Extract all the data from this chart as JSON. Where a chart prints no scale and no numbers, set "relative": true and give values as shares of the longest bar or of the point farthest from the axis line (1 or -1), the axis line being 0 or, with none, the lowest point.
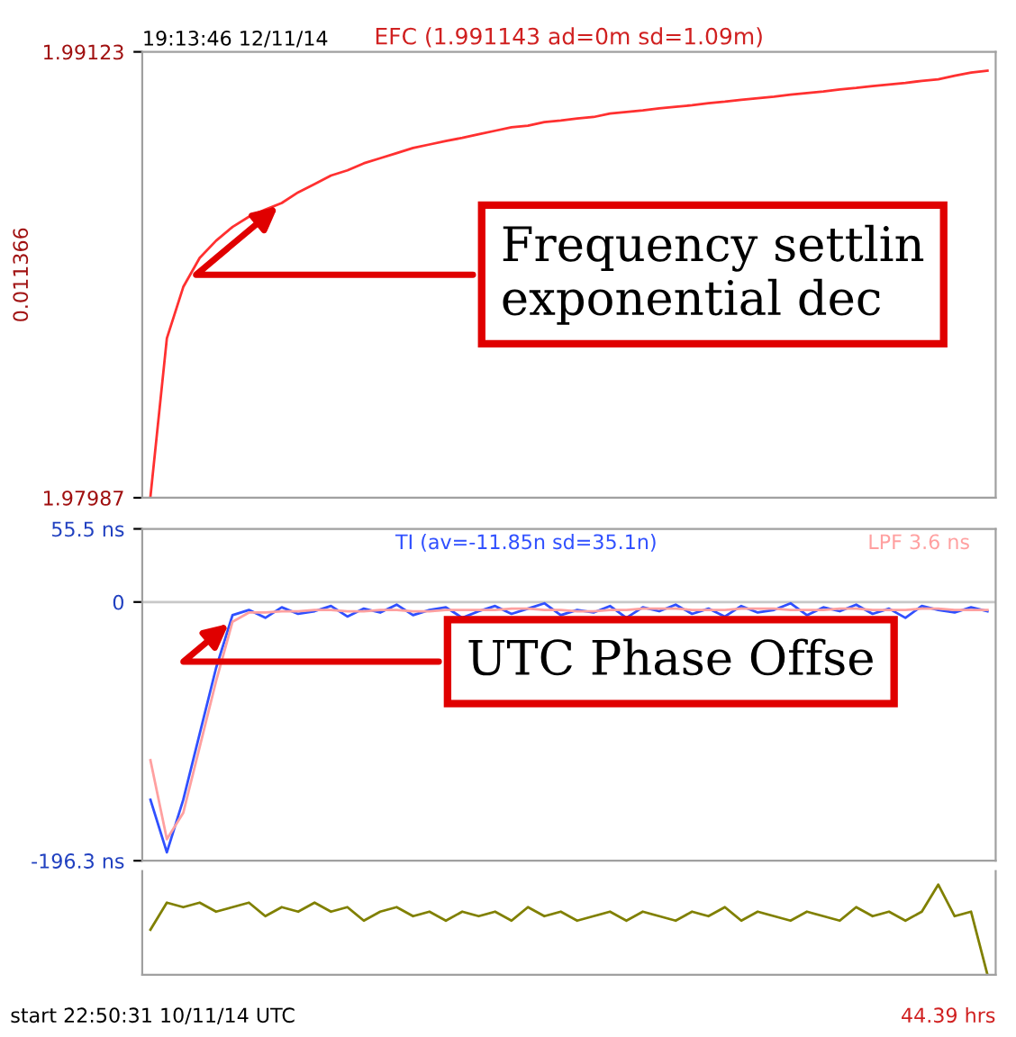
{
  "chart_data": [
    {
      "type": "line",
      "title": "EFC (1.991143 ad=0m sd=1.09m)",
      "ylabel": "0.011366",
      "annotations": [
        "19:13:46 12/11/14",
        "Frequency settlin\nexponential dec"
      ],
      "categories": [
        null,
        null,
        null,
        null,
        null,
        null,
        null,
        null,
        null,
        null,
        null,
        null,
        null,
        null,
        null,
        null,
        null,
        null,
        null,
        null,
        null,
        null,
        null,
        null,
        null,
        null,
        null,
        null,
        null,
        null,
        null,
        null,
        null,
        null,
        null,
        null,
        null,
        null,
        null,
        null,
        null,
        null,
        null,
        null,
        null,
        null,
        null,
        null,
        null,
        null,
        null,
        null
      ],
      "series": [
        {
          "color": "#ff3030",
          "values": [
            1.9799,
            1.98393,
            1.98524,
            1.98598,
            1.98642,
            1.98677,
            1.98703,
            1.98721,
            1.98738,
            1.98765,
            1.98786,
            1.98808,
            1.98821,
            1.98839,
            1.98852,
            1.98865,
            1.98878,
            1.98887,
            1.98896,
            1.98904,
            1.98913,
            1.98922,
            1.98931,
            1.98935,
            1.98944,
            1.98948,
            1.98953,
            1.98957,
            1.98966,
            1.9897,
            1.98974,
            1.98979,
            1.98983,
            1.98987,
            1.98992,
            1.98996,
            1.99001,
            1.99005,
            1.99009,
            1.99014,
            1.99018,
            1.99022,
            1.99027,
            1.99031,
            1.99036,
            1.9904,
            1.99044,
            1.99049,
            1.99053,
            1.99062,
            1.9907,
            1.99075
          ]
        }
      ],
      "ylim": [
        1.97987,
        1.99123
      ],
      "yticks": [
        1.97987,
        1.99123
      ],
      "tick_labels": "y",
      "grid": false
    },
    {
      "type": "line",
      "annotations": [
        "UTC Phase Offse",
        "start 22:50:31 10/11/14 UTC",
        "44.39 hrs"
      ],
      "categories": [
        null,
        null,
        null,
        null,
        null,
        null,
        null,
        null,
        null,
        null,
        null,
        null,
        null,
        null,
        null,
        null,
        null,
        null,
        null,
        null,
        null,
        null,
        null,
        null,
        null,
        null,
        null,
        null,
        null,
        null,
        null,
        null,
        null,
        null,
        null,
        null,
        null,
        null,
        null,
        null,
        null,
        null,
        null,
        null,
        null,
        null,
        null,
        null,
        null,
        null,
        null,
        null
      ],
      "series": [
        {
          "name": "TI (av=-11.85n sd=35.1n)",
          "color": "#3050ff",
          "values": [
            -150,
            -190,
            -150,
            -100,
            -50,
            -10,
            -6,
            -12,
            -4,
            -9,
            -7,
            -3,
            -11,
            -5,
            -8,
            -2,
            -10,
            -6,
            -4,
            -12,
            -7,
            -3,
            -9,
            -5,
            -1,
            -10,
            -6,
            -8,
            -3,
            -12,
            -4,
            -7,
            -2,
            -9,
            -5,
            -11,
            -3,
            -8,
            -6,
            -1,
            -10,
            -4,
            -7,
            -2,
            -9,
            -5,
            -12,
            -3,
            -6,
            -8,
            -4,
            -7
          ]
        },
        {
          "name": "LPF 3.6 ns",
          "color": "#ffa0a0",
          "values": [
            -120,
            -180,
            -160,
            -110,
            -60,
            -15,
            -8,
            -8,
            -7,
            -7,
            -6,
            -6,
            -7,
            -7,
            -6,
            -6,
            -7,
            -7,
            -6,
            -6,
            -6,
            -6,
            -5,
            -5,
            -6,
            -6,
            -7,
            -7,
            -6,
            -6,
            -5,
            -5,
            -5,
            -6,
            -6,
            -6,
            -5,
            -5,
            -5,
            -6,
            -6,
            -6,
            -5,
            -5,
            -6,
            -6,
            -6,
            -5,
            -5,
            -6,
            -6,
            -6
          ]
        }
      ],
      "ylim": [
        -196.3,
        55.5
      ],
      "yticks": [
        {
          "value": 55.5,
          "label": "55.5 ns"
        },
        0,
        {
          "value": -196.3,
          "label": "-196.3 ns"
        }
      ],
      "tick_labels": "y",
      "grid": false,
      "ref_lines": [
        {
          "axis": "y",
          "value": 0,
          "color": "#c8c8c8"
        }
      ]
    },
    {
      "type": "line",
      "relative": true,
      "categories": [
        null,
        null,
        null,
        null,
        null,
        null,
        null,
        null,
        null,
        null,
        null,
        null,
        null,
        null,
        null,
        null,
        null,
        null,
        null,
        null,
        null,
        null,
        null,
        null,
        null,
        null,
        null,
        null,
        null,
        null,
        null,
        null,
        null,
        null,
        null,
        null,
        null,
        null,
        null,
        null,
        null,
        null,
        null,
        null,
        null,
        null,
        null,
        null,
        null,
        null,
        null,
        null
      ],
      "series": [
        {
          "color": "#808000",
          "values": [
            0.5,
            0.8,
            0.75,
            0.8,
            0.7,
            0.75,
            0.8,
            0.65,
            0.75,
            0.7,
            0.8,
            0.7,
            0.75,
            0.6,
            0.7,
            0.75,
            0.65,
            0.7,
            0.6,
            0.7,
            0.65,
            0.7,
            0.6,
            0.75,
            0.65,
            0.7,
            0.6,
            0.65,
            0.7,
            0.6,
            0.7,
            0.65,
            0.6,
            0.7,
            0.65,
            0.75,
            0.6,
            0.7,
            0.65,
            0.6,
            0.7,
            0.65,
            0.6,
            0.75,
            0.65,
            0.7,
            0.6,
            0.7,
            1,
            0.65,
            0.7,
            0
          ]
        }
      ]
    }
  ]
}
